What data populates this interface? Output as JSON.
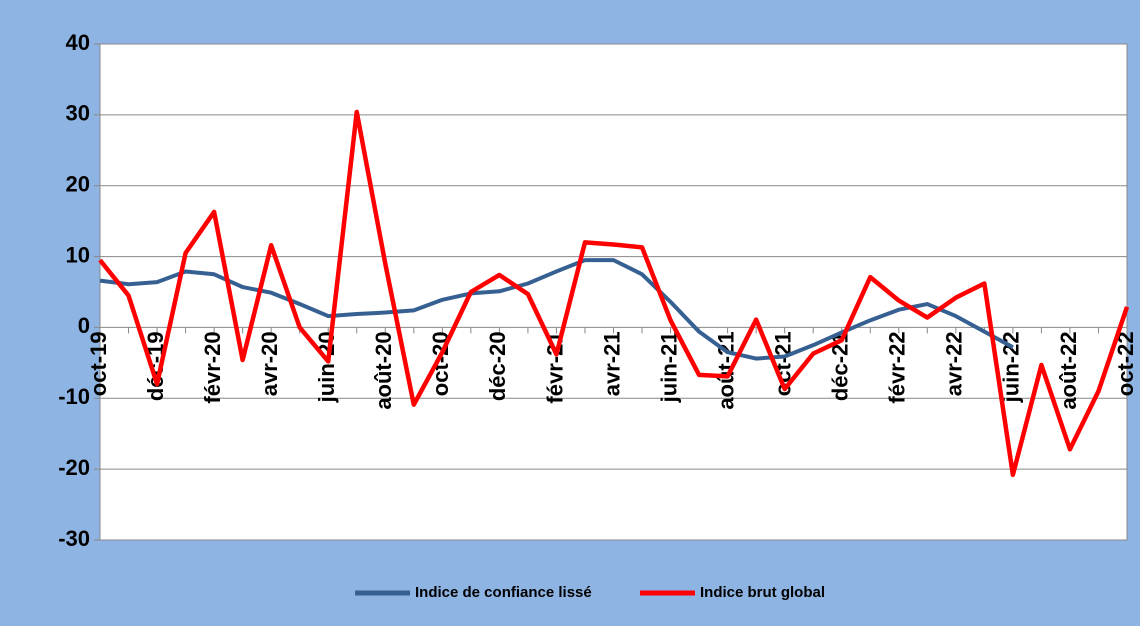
{
  "chart_data": {
    "type": "line",
    "categories": [
      "oct-19",
      null,
      "déc-19",
      null,
      "févr-20",
      null,
      "avr-20",
      null,
      "juin-20",
      null,
      "août-20",
      null,
      "oct-20",
      null,
      "déc-20",
      null,
      "févr-21",
      null,
      "avr-21",
      null,
      "juin-21",
      null,
      "août-21",
      null,
      "oct-21",
      null,
      "déc-21",
      null,
      "févr-22",
      null,
      "avr-22",
      null,
      "juin-22",
      null,
      "août-22",
      null,
      "oct-22"
    ],
    "series": [
      {
        "name": "Indice de confiance lissé",
        "color": "#376092",
        "values": [
          6.6,
          6.1,
          6.4,
          7.9,
          7.5,
          5.7,
          4.9,
          3.3,
          1.6,
          1.9,
          2.1,
          2.4,
          3.9,
          4.8,
          5.1,
          6.2,
          7.9,
          9.5,
          9.5,
          7.5,
          3.6,
          -0.6,
          -3.5,
          -4.4,
          -4.1,
          -2.5,
          -0.7,
          1,
          2.5,
          3.3,
          1.6,
          -0.6,
          -2.8,
          null,
          null,
          null,
          null
        ]
      },
      {
        "name": "Indice brut global",
        "color": "#ff0000",
        "values": [
          9.5,
          4.5,
          -8,
          10.5,
          16.3,
          -4.6,
          11.6,
          0,
          -4.8,
          30.4,
          9,
          -10.9,
          -3.5,
          5,
          7.4,
          4.7,
          -3.8,
          12,
          11.7,
          11.3,
          1,
          -6.7,
          -6.9,
          1.1,
          -8.7,
          -3.7,
          -1.8,
          7.1,
          3.8,
          1.4,
          4.2,
          6.2,
          -20.8,
          -5.3,
          -17.2,
          -9,
          2.9
        ]
      }
    ],
    "ylim": [
      -30,
      40
    ],
    "yticks": [
      -30,
      -20,
      -10,
      0,
      10,
      20,
      30,
      40
    ],
    "grid": true,
    "legend": "bottom"
  }
}
